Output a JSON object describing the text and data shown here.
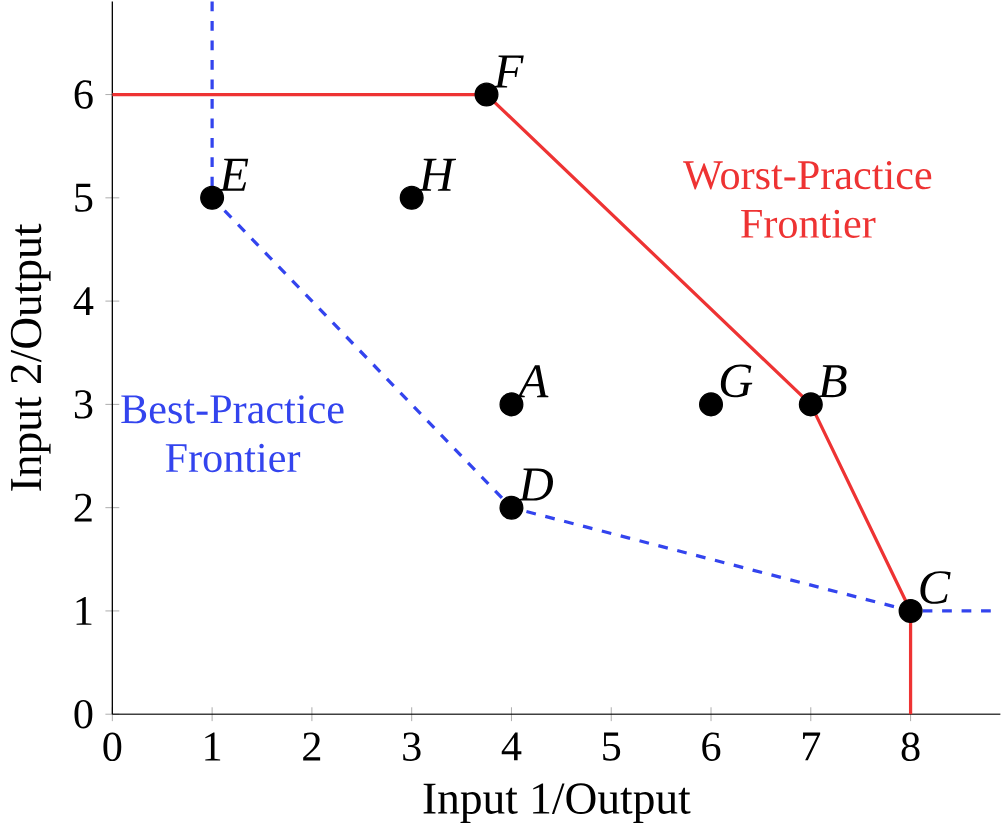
{
  "chart_data": {
    "type": "scatter",
    "xlabel": "Input 1/Output",
    "ylabel": "Input 2/Output",
    "xlim": [
      0,
      8.9
    ],
    "ylim": [
      0,
      6.9
    ],
    "xticks": [
      0,
      1,
      2,
      3,
      4,
      5,
      6,
      7,
      8
    ],
    "yticks": [
      0,
      1,
      2,
      3,
      4,
      5,
      6
    ],
    "grid": false,
    "legend": false,
    "series": [
      {
        "color": "#000000",
        "marker": "circle",
        "x": [
          1,
          3,
          3.75,
          4,
          4,
          6,
          7,
          8
        ],
        "values": [
          5,
          5,
          6,
          3,
          2,
          3,
          3,
          1
        ]
      },
      {
        "type": "line",
        "name": "Worst-Practice Frontier",
        "color": "#ee3333",
        "line_style": "solid",
        "marker": "none",
        "x": [
          0,
          3.75,
          7,
          8,
          8
        ],
        "values": [
          6,
          6,
          3,
          1,
          0
        ]
      },
      {
        "type": "line",
        "name": "Best-Practice Frontier",
        "color": "#3344ee",
        "line_style": "dashed",
        "marker": "none",
        "x": [
          1,
          1,
          4,
          8,
          8.9
        ],
        "values": [
          6.9,
          5,
          2,
          1,
          1
        ]
      }
    ],
    "annotations": [
      {
        "text": "E",
        "x": 1,
        "y": 5
      },
      {
        "text": "H",
        "x": 3,
        "y": 5
      },
      {
        "text": "F",
        "x": 3.75,
        "y": 6
      },
      {
        "text": "A",
        "x": 4,
        "y": 3
      },
      {
        "text": "D",
        "x": 4,
        "y": 2
      },
      {
        "text": "G",
        "x": 6,
        "y": 3
      },
      {
        "text": "B",
        "x": 7,
        "y": 3
      },
      {
        "text": "C",
        "x": 8,
        "y": 1
      }
    ]
  }
}
